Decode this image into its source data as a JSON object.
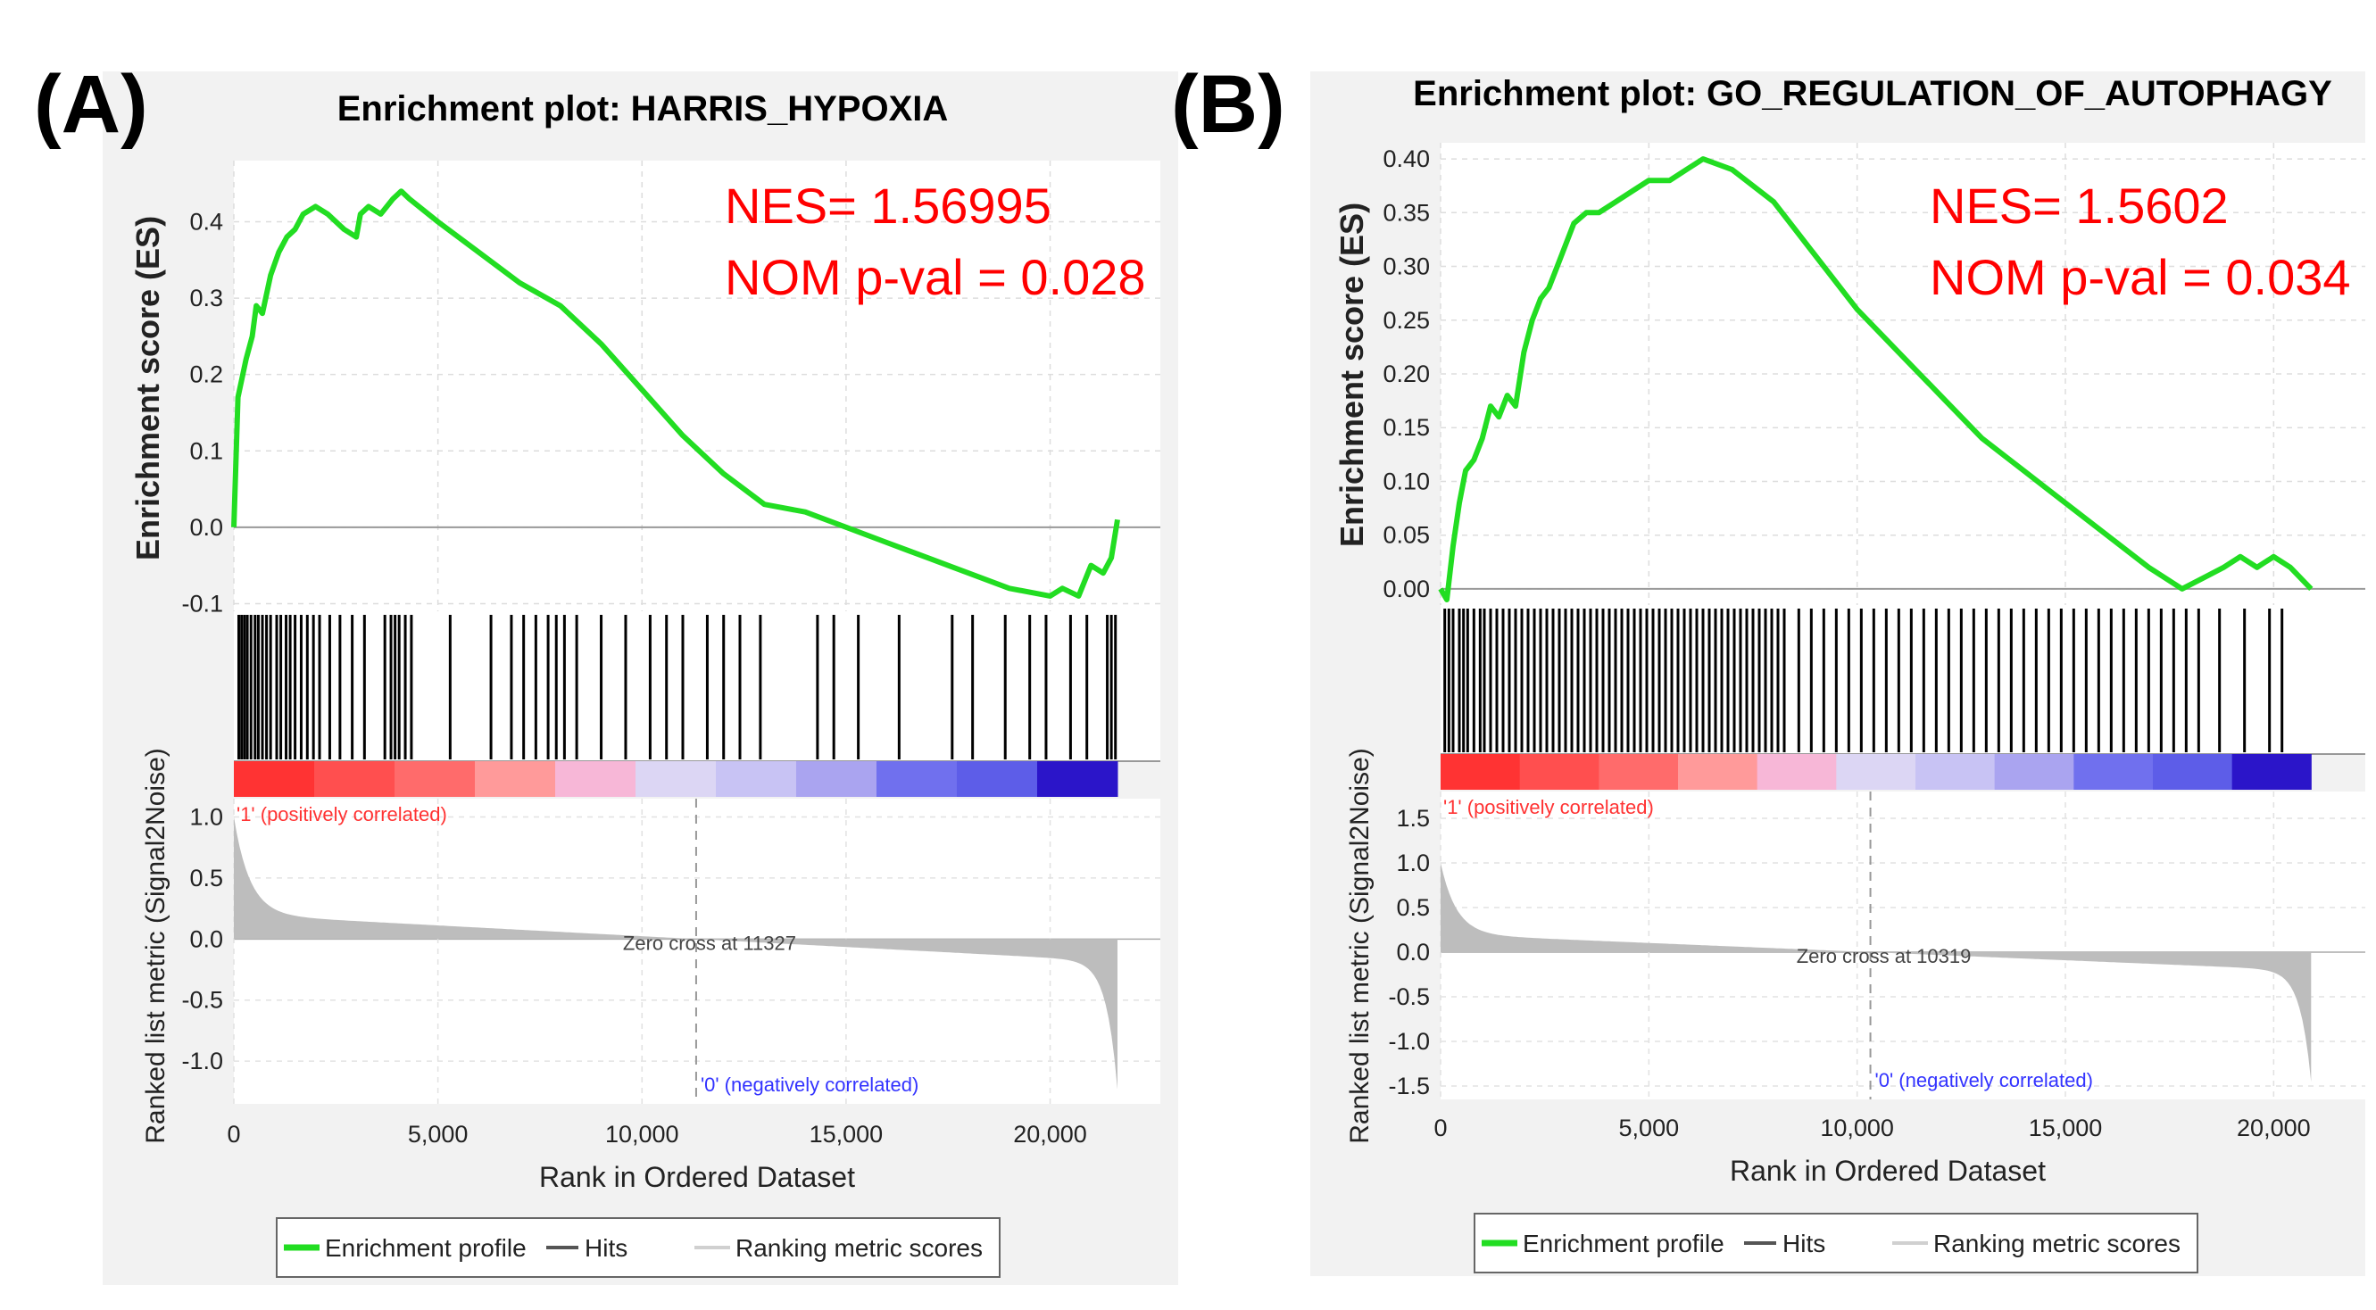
{
  "colors": {
    "panel_bg": "#f2f2f2",
    "plot_bg": "#ffffff",
    "grid": "#d9d9d9",
    "es_line": "#22dd22",
    "hits": "#000000",
    "metric_fill": "#bdbdbd",
    "annotation": "#ff0000",
    "pos_label": "#ff3333",
    "neg_label": "#3333ff"
  },
  "chart_data": [
    {
      "type": "line",
      "panel_label": "(A)",
      "title": "Enrichment plot: HARRIS_HYPOXIA",
      "es_ylabel": "Enrichment score (ES)",
      "metric_ylabel": "Ranked list metric (Signal2Noise)",
      "xlabel": "Rank in Ordered Dataset",
      "xlim": [
        0,
        22700
      ],
      "xticks": [
        0,
        5000,
        10000,
        15000,
        20000
      ],
      "xtick_labels": [
        "0",
        "5,000",
        "10,000",
        "15,000",
        "20,000"
      ],
      "es_ylim": [
        -0.11,
        0.48
      ],
      "es_yticks": [
        -0.1,
        0.0,
        0.1,
        0.2,
        0.3,
        0.4
      ],
      "es_ytick_labels": [
        "-0.1",
        "0.0",
        "0.1",
        "0.2",
        "0.3",
        "0.4"
      ],
      "metric_ylim": [
        -1.35,
        1.15
      ],
      "metric_yticks": [
        -1.0,
        -0.5,
        0.0,
        0.5,
        1.0
      ],
      "metric_ytick_labels": [
        "-1.0",
        "-0.5",
        "0.0",
        "0.5",
        "1.0"
      ],
      "n_genes": 21650,
      "metric_max": 1.0,
      "metric_min": -1.3,
      "es_series": {
        "x": [
          0,
          100,
          300,
          450,
          550,
          700,
          900,
          1100,
          1300,
          1500,
          1700,
          2000,
          2300,
          2700,
          3000,
          3100,
          3300,
          3600,
          3900,
          4100,
          4300,
          5000,
          6000,
          7000,
          8000,
          9000,
          10000,
          11000,
          12000,
          13000,
          14000,
          15000,
          16000,
          17000,
          18000,
          19000,
          20000,
          20300,
          20700,
          21000,
          21300,
          21500,
          21650
        ],
        "y": [
          0.0,
          0.17,
          0.22,
          0.25,
          0.29,
          0.28,
          0.33,
          0.36,
          0.38,
          0.39,
          0.41,
          0.42,
          0.41,
          0.39,
          0.38,
          0.41,
          0.42,
          0.41,
          0.43,
          0.44,
          0.43,
          0.4,
          0.36,
          0.32,
          0.29,
          0.24,
          0.18,
          0.12,
          0.07,
          0.03,
          0.02,
          0.0,
          -0.02,
          -0.04,
          -0.06,
          -0.08,
          -0.09,
          -0.08,
          -0.09,
          -0.05,
          -0.06,
          -0.04,
          0.01
        ]
      },
      "hits": [
        120,
        190,
        260,
        330,
        420,
        520,
        600,
        700,
        800,
        900,
        1050,
        1150,
        1280,
        1380,
        1500,
        1650,
        1800,
        1950,
        2100,
        2350,
        2600,
        2900,
        3200,
        3700,
        3850,
        3950,
        4050,
        4200,
        4350,
        5300,
        6300,
        6800,
        7100,
        7400,
        7700,
        7900,
        8100,
        8400,
        9000,
        9600,
        10200,
        10600,
        11000,
        11600,
        12000,
        12400,
        12900,
        14300,
        14700,
        15300,
        16300,
        17600,
        18100,
        18900,
        19500,
        19900,
        20500,
        20900,
        21400,
        21500,
        21600
      ],
      "heatmap_segment_colors": [
        "#ff3333",
        "#ff4f4f",
        "#ff6b6b",
        "#ff9a9a",
        "#f7b7d7",
        "#dcd6f4",
        "#c8c3f4",
        "#aaa4f0",
        "#7070ee",
        "#5d5de8",
        "#2b15c9"
      ],
      "pos_label": "'1' (positively correlated)",
      "neg_label": "'0' (negatively correlated)",
      "zero_cross": 11327,
      "zero_cross_label": "Zero cross at 11327",
      "annotations": [
        "NES= 1.56995",
        "NOM p-val = 0.028"
      ],
      "legend": [
        "Enrichment profile",
        "Hits",
        "Ranking metric scores"
      ]
    },
    {
      "type": "line",
      "panel_label": "(B)",
      "title": "Enrichment plot: GO_REGULATION_OF_AUTOPHAGY",
      "es_ylabel": "Enrichment score (ES)",
      "metric_ylabel": "Ranked list metric (Signal2Noise)",
      "xlabel": "Rank in Ordered Dataset",
      "xlim": [
        0,
        22200
      ],
      "xticks": [
        0,
        5000,
        10000,
        15000,
        20000
      ],
      "xtick_labels": [
        "0",
        "5,000",
        "10,000",
        "15,000",
        "20,000"
      ],
      "es_ylim": [
        -0.015,
        0.415
      ],
      "es_yticks": [
        0.0,
        0.05,
        0.1,
        0.15,
        0.2,
        0.25,
        0.3,
        0.35,
        0.4
      ],
      "es_ytick_labels": [
        "0.00",
        "0.05",
        "0.10",
        "0.15",
        "0.20",
        "0.25",
        "0.30",
        "0.35",
        "0.40"
      ],
      "metric_ylim": [
        -1.65,
        1.8
      ],
      "metric_yticks": [
        -1.5,
        -1.0,
        -0.5,
        0.0,
        0.5,
        1.0,
        1.5
      ],
      "metric_ytick_labels": [
        "-1.5",
        "-1.0",
        "-0.5",
        "0.0",
        "0.5",
        "1.0",
        "1.5"
      ],
      "n_genes": 20900,
      "metric_max": 1.0,
      "metric_min": -1.5,
      "es_series": {
        "x": [
          0,
          150,
          300,
          450,
          600,
          800,
          1000,
          1200,
          1400,
          1600,
          1800,
          2000,
          2200,
          2400,
          2600,
          2800,
          3000,
          3200,
          3500,
          3800,
          4200,
          4600,
          5000,
          5500,
          5900,
          6300,
          7000,
          8000,
          9000,
          10000,
          11000,
          12000,
          13000,
          14000,
          15000,
          16000,
          17000,
          17800,
          18300,
          18800,
          19200,
          19600,
          20000,
          20400,
          20900
        ],
        "y": [
          0.0,
          -0.01,
          0.04,
          0.08,
          0.11,
          0.12,
          0.14,
          0.17,
          0.16,
          0.18,
          0.17,
          0.22,
          0.25,
          0.27,
          0.28,
          0.3,
          0.32,
          0.34,
          0.35,
          0.35,
          0.36,
          0.37,
          0.38,
          0.38,
          0.39,
          0.4,
          0.39,
          0.36,
          0.31,
          0.26,
          0.22,
          0.18,
          0.14,
          0.11,
          0.08,
          0.05,
          0.02,
          0.0,
          0.01,
          0.02,
          0.03,
          0.02,
          0.03,
          0.02,
          0.0
        ]
      },
      "hits": [
        100,
        200,
        300,
        450,
        550,
        650,
        800,
        950,
        1050,
        1200,
        1350,
        1500,
        1650,
        1800,
        1950,
        2100,
        2250,
        2400,
        2550,
        2700,
        2850,
        3000,
        3150,
        3300,
        3450,
        3600,
        3750,
        3900,
        4050,
        4200,
        4350,
        4500,
        4650,
        4800,
        4950,
        5100,
        5250,
        5400,
        5550,
        5700,
        5850,
        6000,
        6150,
        6300,
        6450,
        6600,
        6750,
        6900,
        7050,
        7200,
        7350,
        7500,
        7650,
        7800,
        7950,
        8100,
        8250,
        8600,
        8900,
        9200,
        9500,
        9800,
        10100,
        10400,
        10700,
        11000,
        11300,
        11600,
        11900,
        12200,
        12500,
        12800,
        13100,
        13400,
        13700,
        14000,
        14300,
        14600,
        14900,
        15200,
        15500,
        15800,
        16100,
        16400,
        16700,
        17000,
        17300,
        17600,
        17900,
        18200,
        18700,
        19300,
        19900,
        20200
      ],
      "heatmap_segment_colors": [
        "#ff3333",
        "#ff4f4f",
        "#ff6b6b",
        "#ff9a9a",
        "#f7b7d7",
        "#dcd6f4",
        "#c8c3f4",
        "#aaa4f0",
        "#7070ee",
        "#5d5de8",
        "#2b15c9"
      ],
      "pos_label": "'1' (positively correlated)",
      "neg_label": "'0' (negatively correlated)",
      "zero_cross": 10319,
      "zero_cross_label": "Zero cross at 10319",
      "annotations": [
        "NES= 1.5602",
        "NOM p-val = 0.034"
      ],
      "legend": [
        "Enrichment profile",
        "Hits",
        "Ranking metric scores"
      ]
    }
  ]
}
